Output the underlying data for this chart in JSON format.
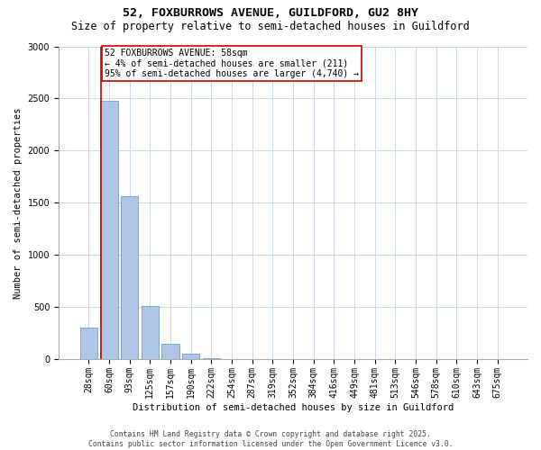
{
  "title_line1": "52, FOXBURROWS AVENUE, GUILDFORD, GU2 8HY",
  "title_line2": "Size of property relative to semi-detached houses in Guildford",
  "xlabel": "Distribution of semi-detached houses by size in Guildford",
  "ylabel": "Number of semi-detached properties",
  "categories": [
    "28sqm",
    "60sqm",
    "93sqm",
    "125sqm",
    "157sqm",
    "190sqm",
    "222sqm",
    "254sqm",
    "287sqm",
    "319sqm",
    "352sqm",
    "384sqm",
    "416sqm",
    "449sqm",
    "481sqm",
    "513sqm",
    "546sqm",
    "578sqm",
    "610sqm",
    "643sqm",
    "675sqm"
  ],
  "values": [
    300,
    2480,
    1560,
    510,
    145,
    55,
    10,
    3,
    1,
    0,
    0,
    0,
    0,
    0,
    0,
    0,
    0,
    0,
    0,
    0,
    0
  ],
  "bar_color": "#aec6e8",
  "bar_edge_color": "#5a8fc0",
  "line_color": "#cc0000",
  "ylim": [
    0,
    3000
  ],
  "yticks": [
    0,
    500,
    1000,
    1500,
    2000,
    2500,
    3000
  ],
  "annotation_text": "52 FOXBURROWS AVENUE: 58sqm\n← 4% of semi-detached houses are smaller (211)\n95% of semi-detached houses are larger (4,740) →",
  "annotation_box_color": "#ffffff",
  "annotation_box_edge": "#cc0000",
  "footer_line1": "Contains HM Land Registry data © Crown copyright and database right 2025.",
  "footer_line2": "Contains public sector information licensed under the Open Government Licence v3.0.",
  "background_color": "#ffffff",
  "grid_color": "#c8d8e8",
  "title_fontsize": 9.5,
  "subtitle_fontsize": 8.5,
  "axis_label_fontsize": 7.5,
  "tick_fontsize": 7,
  "annotation_fontsize": 7,
  "footer_fontsize": 5.8
}
